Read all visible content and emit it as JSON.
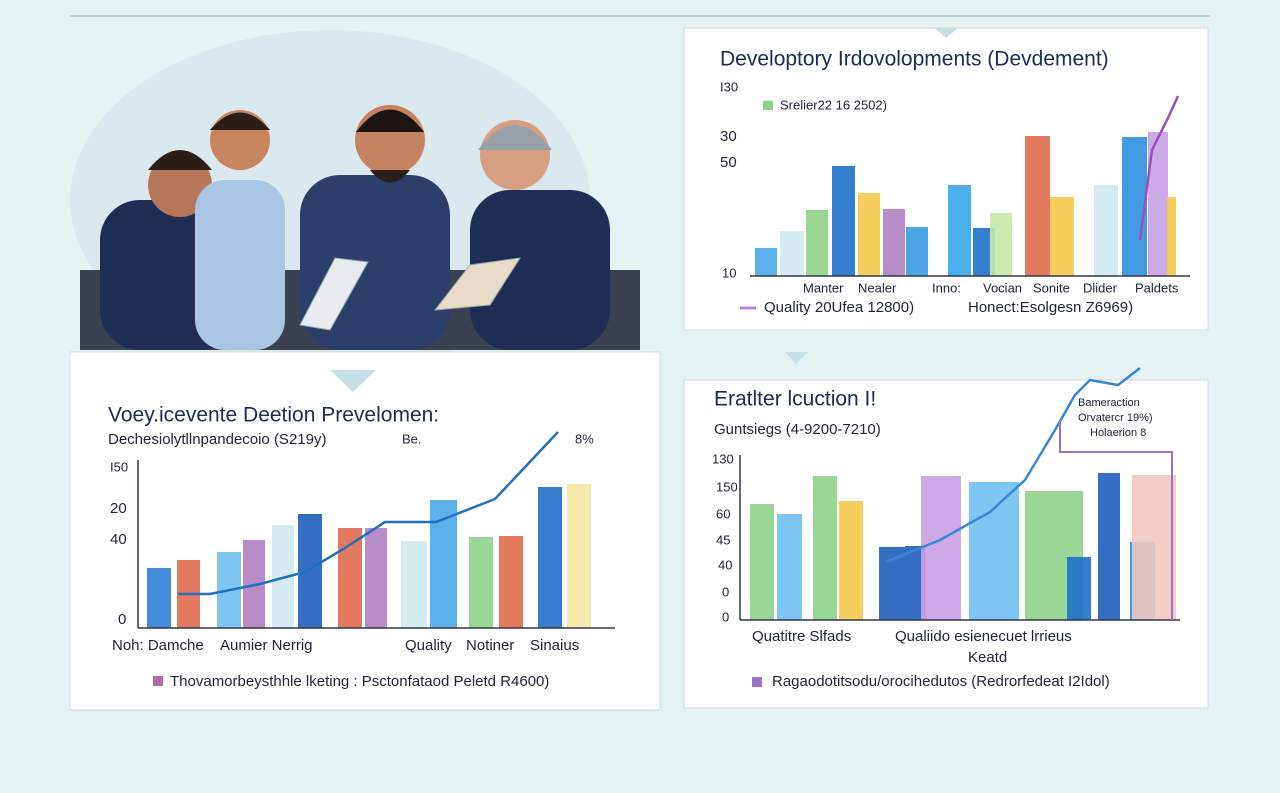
{
  "panels": [
    {
      "title": "Developtory Irdovolopments (Devdement)",
      "legend": "Srelier22 16 2502)",
      "axis": [
        "I30",
        "30",
        "50",
        "10"
      ],
      "categories": [
        "Manter",
        "Nealer",
        "Inno:",
        "Vocian",
        "Sonite",
        "Dlider",
        "Paldets"
      ],
      "footer": [
        "Quality 20Ufea 12800)",
        "Honect:Esolgesn Z6969)"
      ]
    },
    {
      "title": "Voey.icevente Deetion Prevelomen:",
      "subtitle": "Dechesiolytllnpandecoio (S219y)",
      "notes": [
        "Be.",
        "8%"
      ],
      "axis": [
        "I50",
        "20",
        "40",
        "0"
      ],
      "categories": [
        "Noh: Damche",
        "Aumier Nerrig",
        "Quality",
        "Notiner",
        "Sinaius"
      ],
      "footer": [
        "Thovamorbeysthhle lketing : Psctonfataod Peletd R4600)"
      ]
    },
    {
      "title": "Eratlter lcuction I!",
      "subtitle": "Guntsiegs (4-9200-7210)",
      "notes": [
        "Bameraction",
        "Orvatercr 19%)",
        "Holaerion 8"
      ],
      "axis": [
        "130",
        "150",
        "60",
        "45",
        "40",
        "0",
        "0"
      ],
      "categories": [
        "Quatitre Slfads",
        "Qualiido esienecuet lrrieus",
        "Keatd"
      ],
      "footer": [
        "Ragaodotitsodu/orocihedutos (Redrorfedeat I2Idol)"
      ]
    }
  ]
}
